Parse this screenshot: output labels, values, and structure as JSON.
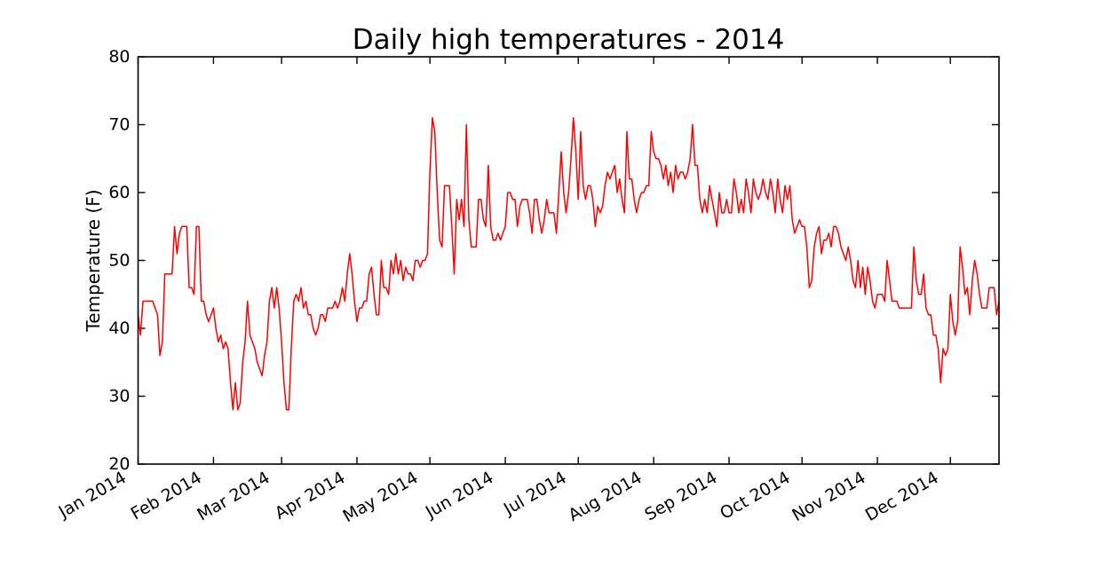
{
  "page": {
    "background": "#ffffff"
  },
  "chart_data": {
    "type": "line",
    "title": "Daily high temperatures - 2014",
    "xlabel": "",
    "ylabel": "Temperature (F)",
    "ylim": [
      20,
      80
    ],
    "yticks": [
      20,
      30,
      40,
      50,
      60,
      70,
      80
    ],
    "xticks": [
      {
        "label": "Jan 2014",
        "day": 0
      },
      {
        "label": "Feb 2014",
        "day": 31
      },
      {
        "label": "Mar 2014",
        "day": 59
      },
      {
        "label": "Apr 2014",
        "day": 90
      },
      {
        "label": "May 2014",
        "day": 120
      },
      {
        "label": "Jun 2014",
        "day": 151
      },
      {
        "label": "Jul 2014",
        "day": 181
      },
      {
        "label": "Aug 2014",
        "day": 212
      },
      {
        "label": "Sep 2014",
        "day": 243
      },
      {
        "label": "Oct 2014",
        "day": 273
      },
      {
        "label": "Nov 2014",
        "day": 304
      },
      {
        "label": "Dec 2014",
        "day": 334
      }
    ],
    "x_unit": "day of year (Jan 1 = 0), daily values Jan 1 - Dec 21",
    "line_color": "#ff0000",
    "axis_color": "#000000",
    "grid": false,
    "legend": "none",
    "values": [
      42,
      39,
      44,
      44,
      44,
      44,
      44,
      43,
      42,
      36,
      38,
      48,
      48,
      48,
      48,
      55,
      51,
      54,
      55,
      55,
      55,
      46,
      46,
      45,
      55,
      55,
      44,
      44,
      42,
      41,
      42,
      43,
      40,
      38,
      39,
      37,
      38,
      37,
      32,
      28,
      32,
      28,
      29,
      35,
      38,
      44,
      39,
      38,
      37,
      35,
      34,
      33,
      36,
      38,
      44,
      46,
      43,
      46,
      43,
      38,
      32,
      28,
      28,
      37,
      44,
      45,
      44,
      46,
      43,
      44,
      42,
      42,
      40,
      39,
      40,
      42,
      42,
      41,
      43,
      43,
      43,
      44,
      43,
      44,
      46,
      44,
      48,
      51,
      48,
      44,
      41,
      43,
      43,
      44,
      44,
      48,
      49,
      45,
      42,
      42,
      50,
      46,
      46,
      45,
      50,
      48,
      51,
      48,
      50,
      47,
      49,
      48,
      48,
      47,
      50,
      50,
      49,
      50,
      50,
      51,
      63,
      71,
      69,
      60,
      53,
      52,
      61,
      61,
      61,
      55,
      48,
      59,
      56,
      59,
      55,
      70,
      56,
      52,
      52,
      52,
      59,
      59,
      56,
      55,
      64,
      55,
      53,
      53,
      54,
      53,
      54,
      55,
      60,
      60,
      59,
      59,
      55,
      58,
      59,
      59,
      59,
      57,
      54,
      59,
      59,
      56,
      54,
      56,
      59,
      57,
      57,
      57,
      54,
      60,
      66,
      60,
      57,
      60,
      65,
      71,
      66,
      59,
      69,
      61,
      59,
      61,
      61,
      59,
      55,
      58,
      57,
      58,
      61,
      63,
      62,
      63,
      64,
      60,
      62,
      59,
      57,
      69,
      62,
      62,
      59,
      57,
      59,
      60,
      60,
      61,
      61,
      69,
      66,
      65,
      65,
      64,
      62,
      64,
      61,
      63,
      60,
      64,
      62,
      63,
      63,
      62,
      63,
      65,
      70,
      64,
      64,
      59,
      57,
      59,
      57,
      61,
      59,
      57,
      55,
      60,
      57,
      57,
      59,
      57,
      57,
      62,
      60,
      57,
      59,
      57,
      62,
      60,
      57,
      62,
      60,
      59,
      60,
      62,
      60,
      59,
      62,
      60,
      57,
      62,
      59,
      57,
      61,
      59,
      61,
      56,
      54,
      55,
      56,
      55,
      55,
      52,
      46,
      47,
      52,
      54,
      55,
      51,
      53,
      53,
      54,
      52,
      55,
      55,
      54,
      52,
      51,
      50,
      52,
      50,
      47,
      46,
      50,
      46,
      49,
      45,
      49,
      47,
      44,
      43,
      45,
      45,
      45,
      44,
      50,
      47,
      44,
      44,
      44,
      43,
      43,
      43,
      43,
      43,
      43,
      52,
      47,
      45,
      45,
      48,
      43,
      42,
      42,
      39,
      39,
      37,
      32,
      37,
      36,
      37,
      45,
      41,
      39,
      41,
      52,
      49,
      45,
      46,
      42,
      47,
      50,
      48,
      45,
      43,
      43,
      43,
      46,
      46,
      46,
      42,
      44
    ]
  }
}
